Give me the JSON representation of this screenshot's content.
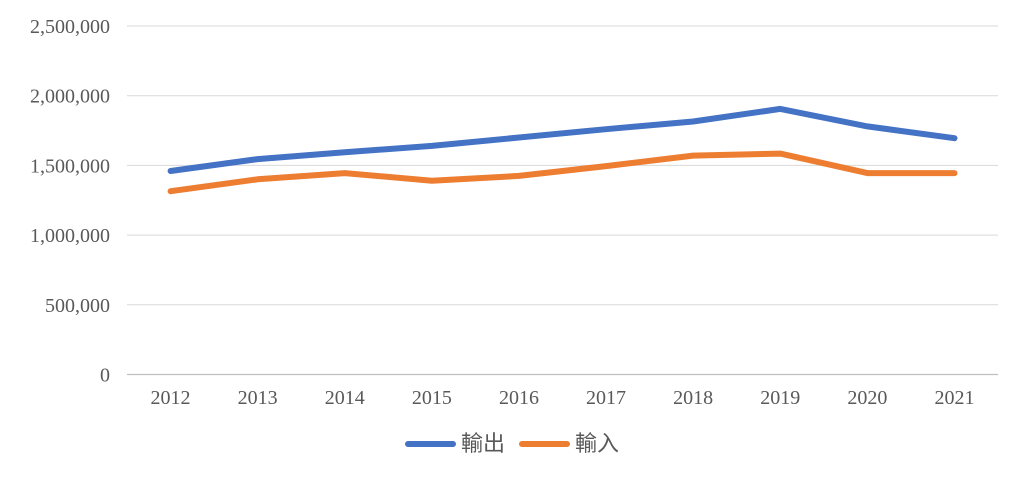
{
  "chart_data": {
    "type": "line",
    "title": "",
    "xlabel": "",
    "ylabel": "",
    "categories": [
      "2012",
      "2013",
      "2014",
      "2015",
      "2016",
      "2017",
      "2018",
      "2019",
      "2020",
      "2021"
    ],
    "series": [
      {
        "name": "輸出",
        "color": "#4472C4",
        "values": [
          1460000,
          1545000,
          1595000,
          1640000,
          1700000,
          1760000,
          1815000,
          1905000,
          1780000,
          1695000
        ]
      },
      {
        "name": "輸入",
        "color": "#ED7D31",
        "values": [
          1315000,
          1400000,
          1445000,
          1390000,
          1425000,
          1495000,
          1570000,
          1585000,
          1445000,
          1445000
        ]
      }
    ],
    "ylim": [
      0,
      2500000
    ],
    "ytick_step": 500000,
    "ytick_labels": [
      "0",
      "500,000",
      "1,000,000",
      "1,500,000",
      "2,000,000",
      "2,500,000"
    ],
    "grid": true,
    "legend_position": "bottom",
    "colors": {
      "grid": "#D9D9D9",
      "axis_line": "#BFBFBF",
      "label": "#595959",
      "background": "#FFFFFF"
    }
  }
}
